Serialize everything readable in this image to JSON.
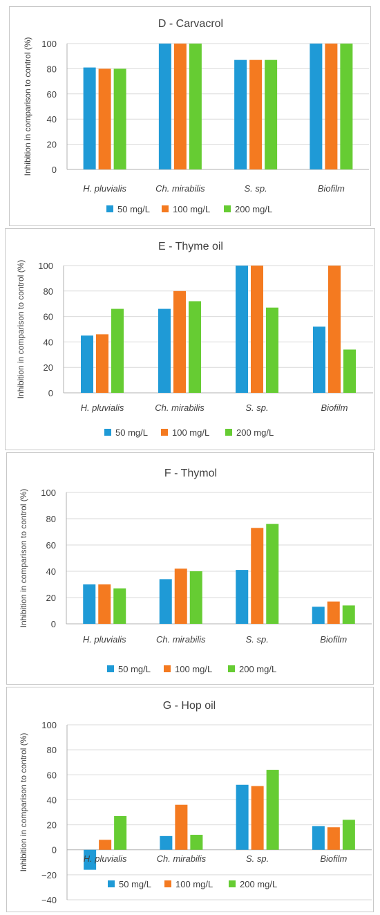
{
  "chart_data": [
    {
      "type": "bar",
      "title": "D - Carvacrol",
      "ylabel": "Inhibition in comparison to control (%)",
      "categories": [
        "H. pluvialis",
        "Ch. mirabilis",
        "S. sp.",
        "Biofilm"
      ],
      "ylim": [
        0,
        100
      ],
      "yticks": [
        0,
        20,
        40,
        60,
        80,
        100
      ],
      "grid": true,
      "legend": "bottom",
      "series": [
        {
          "name": "50 mg/L",
          "color": "#1f9ad6",
          "values": [
            81,
            100,
            87,
            100
          ]
        },
        {
          "name": "100 mg/L",
          "color": "#f47a20",
          "values": [
            80,
            100,
            87,
            100
          ]
        },
        {
          "name": "200 mg/L",
          "color": "#66cc33",
          "values": [
            80,
            100,
            87,
            100
          ]
        }
      ]
    },
    {
      "type": "bar",
      "title": "E - Thyme oil",
      "ylabel": "Inhibition in comparison to control (%)",
      "categories": [
        "H. pluvialis",
        "Ch. mirabilis",
        "S. sp.",
        "Biofilm"
      ],
      "ylim": [
        0,
        100
      ],
      "yticks": [
        0,
        20,
        40,
        60,
        80,
        100
      ],
      "grid": true,
      "legend": "bottom",
      "series": [
        {
          "name": "50 mg/L",
          "color": "#1f9ad6",
          "values": [
            45,
            66,
            100,
            52
          ]
        },
        {
          "name": "100 mg/L",
          "color": "#f47a20",
          "values": [
            46,
            80,
            100,
            100
          ]
        },
        {
          "name": "200 mg/L",
          "color": "#66cc33",
          "values": [
            66,
            72,
            67,
            34
          ]
        }
      ]
    },
    {
      "type": "bar",
      "title": "F - Thymol",
      "ylabel": "Inhibition in comparison to control (%)",
      "categories": [
        "H. pluvialis",
        "Ch. mirabilis",
        "S. sp.",
        "Biofilm"
      ],
      "ylim": [
        0,
        100
      ],
      "yticks": [
        0,
        20,
        40,
        60,
        80,
        100
      ],
      "grid": true,
      "legend": "bottom",
      "series": [
        {
          "name": "50 mg/L",
          "color": "#1f9ad6",
          "values": [
            30,
            34,
            41,
            13
          ]
        },
        {
          "name": "100 mg/L",
          "color": "#f47a20",
          "values": [
            30,
            42,
            73,
            17
          ]
        },
        {
          "name": "200 mg/L",
          "color": "#66cc33",
          "values": [
            27,
            40,
            76,
            14
          ]
        }
      ]
    },
    {
      "type": "bar",
      "title": "G - Hop oil",
      "ylabel": "Inhibition in comparison to control (%)",
      "categories": [
        "H. pluvialis",
        "Ch. mirabilis",
        "S. sp.",
        "Biofilm"
      ],
      "ylim": [
        -40,
        100
      ],
      "yticks": [
        -40,
        -20,
        0,
        20,
        40,
        60,
        80,
        100
      ],
      "grid": true,
      "legend": "bottom",
      "series": [
        {
          "name": "50 mg/L",
          "color": "#1f9ad6",
          "values": [
            -16,
            11,
            52,
            19
          ]
        },
        {
          "name": "100 mg/L",
          "color": "#f47a20",
          "values": [
            8,
            36,
            51,
            18
          ]
        },
        {
          "name": "200 mg/L",
          "color": "#66cc33",
          "values": [
            27,
            12,
            64,
            24
          ]
        }
      ]
    }
  ]
}
